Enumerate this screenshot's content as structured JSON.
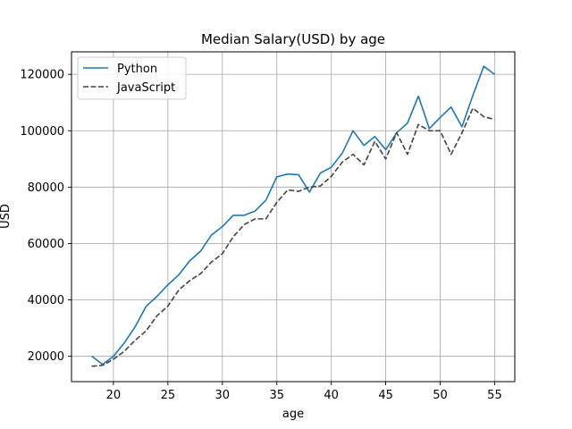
{
  "chart_data": {
    "type": "line",
    "title": "Median Salary(USD) by age",
    "xlabel": "age",
    "ylabel": "USD",
    "xlim": [
      16.15,
      56.85
    ],
    "ylim": [
      11000,
      128000
    ],
    "xticks": [
      20,
      25,
      30,
      35,
      40,
      45,
      50,
      55
    ],
    "yticks": [
      20000,
      40000,
      60000,
      80000,
      100000,
      120000
    ],
    "grid": true,
    "legend_position": "upper-left",
    "x": [
      18,
      19,
      20,
      21,
      22,
      23,
      24,
      25,
      26,
      27,
      28,
      29,
      30,
      31,
      32,
      33,
      34,
      35,
      36,
      37,
      38,
      39,
      40,
      41,
      42,
      43,
      44,
      45,
      46,
      47,
      48,
      49,
      50,
      51,
      52,
      53,
      54,
      55
    ],
    "series": [
      {
        "name": "Python",
        "color": "#1f77b4",
        "style": "solid",
        "values": [
          20046,
          17100,
          20000,
          24744,
          30500,
          37732,
          41247,
          45372,
          48876,
          53850,
          57287,
          63016,
          65998,
          70003,
          70000,
          71496,
          75370,
          83640,
          84666,
          84392,
          78254,
          85000,
          87038,
          91991,
          100000,
          94796,
          97962,
          93302,
          99240,
          102736,
          112285,
          100771,
          104708,
          108423,
          101407,
          112542,
          122870,
          120000
        ]
      },
      {
        "name": "JavaScript",
        "color": "#444444",
        "style": "dashed",
        "values": [
          16446,
          16791,
          18942,
          21780,
          25704,
          29000,
          34372,
          37810,
          43515,
          46823,
          49293,
          53437,
          56373,
          62375,
          66674,
          68745,
          68746,
          74583,
          79000,
          78508,
          79996,
          80403,
          83820,
          88833,
          91660,
          87892,
          96243,
          90000,
          99313,
          91660,
          102264,
          100000,
          100000,
          91660,
          99240,
          108000,
          105000,
          104000
        ]
      }
    ]
  }
}
